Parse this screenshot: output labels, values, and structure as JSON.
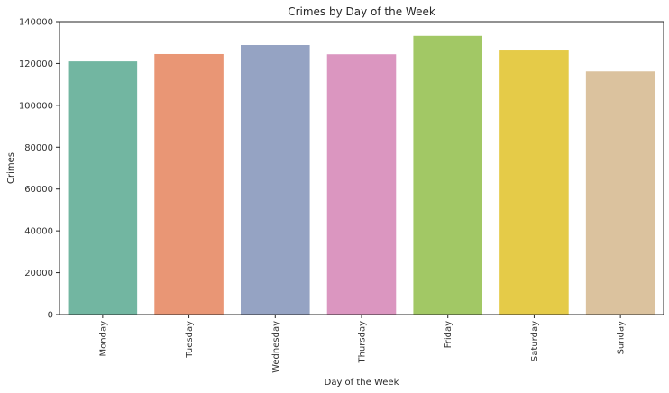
{
  "chart_data": {
    "type": "bar",
    "title": "Crimes by Day of the Week",
    "xlabel": "Day of the Week",
    "ylabel": "Crimes",
    "categories": [
      "Monday",
      "Tuesday",
      "Wednesday",
      "Thursday",
      "Friday",
      "Saturday",
      "Sunday"
    ],
    "values": [
      121000,
      124500,
      128800,
      124400,
      133200,
      126200,
      116200
    ],
    "colors": [
      "#72b6a1",
      "#e99675",
      "#95a3c3",
      "#db96c0",
      "#a2c865",
      "#e5cb48",
      "#dbc29e"
    ],
    "ylim": [
      0,
      140000
    ],
    "yticks": [
      "0",
      "20000",
      "40000",
      "60000",
      "80000",
      "100000",
      "120000",
      "140000"
    ],
    "ytick_values": [
      0,
      20000,
      40000,
      60000,
      80000,
      100000,
      120000,
      140000
    ],
    "grid": false,
    "legend": "none"
  }
}
